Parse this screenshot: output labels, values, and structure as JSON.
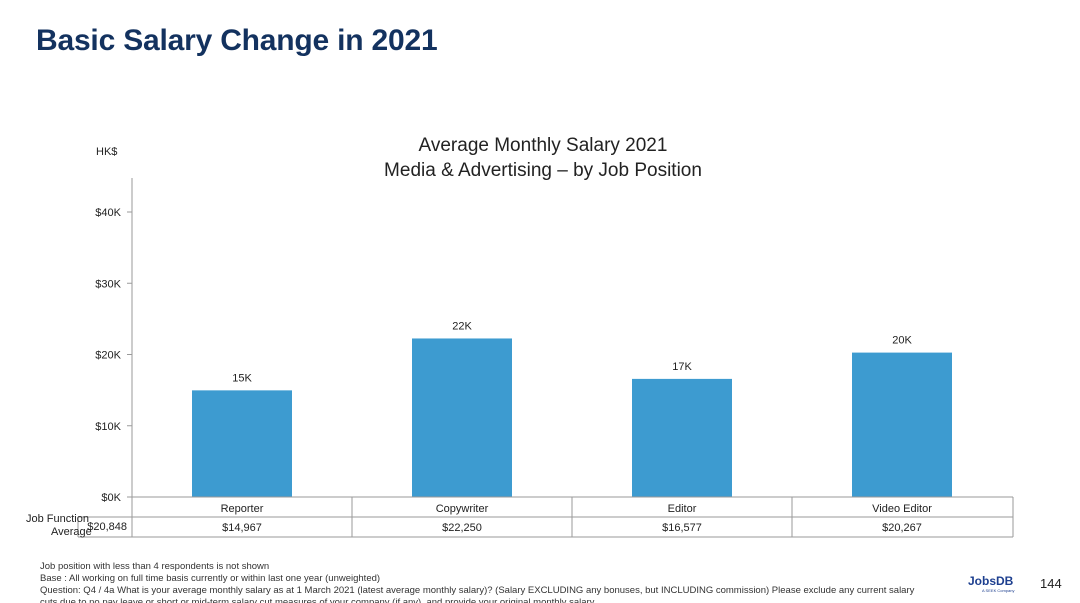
{
  "page": {
    "title": "Basic Salary Change in 2021",
    "page_number": "144",
    "brand_logo": "JobsDB",
    "brand_sub": "A SEEK Company"
  },
  "chart_data": {
    "type": "bar",
    "title_line1": "Average Monthly Salary 2021",
    "title_line2": "Media & Advertising – by Job Position",
    "ylabel": "HK$",
    "ylim": [
      0,
      45000
    ],
    "yticks": [
      {
        "value": 0,
        "label": "$0K"
      },
      {
        "value": 10000,
        "label": "$10K"
      },
      {
        "value": 20000,
        "label": "$20K"
      },
      {
        "value": 30000,
        "label": "$30K"
      },
      {
        "value": 40000,
        "label": "$40K"
      }
    ],
    "categories": [
      "Reporter",
      "Copywriter",
      "Editor",
      "Video Editor"
    ],
    "values": [
      14967,
      22250,
      16577,
      20267
    ],
    "data_labels": [
      "15K",
      "22K",
      "17K",
      "20K"
    ],
    "bar_color": "#3d9bd0",
    "table": {
      "row1_label": "Job Function",
      "row2_label": "Average",
      "average_overall": "$20,848",
      "values": [
        "$14,967",
        "$22,250",
        "$16,577",
        "$20,267"
      ]
    }
  },
  "footnotes": [
    "Job position with less than 4 respondents is not shown",
    "Base : All working on full time basis  currently or within last one year (unweighted)",
    "Question: Q4 / 4a  What is your average monthly salary as at 1 March 2021 (latest average monthly salary)? (Salary EXCLUDING any bonuses, but INCLUDING commission) Please exclude any current salary",
    "cuts due to no pay leave or short or mid-term salary cut measures of your company (if any), and provide your original monthly salary"
  ]
}
